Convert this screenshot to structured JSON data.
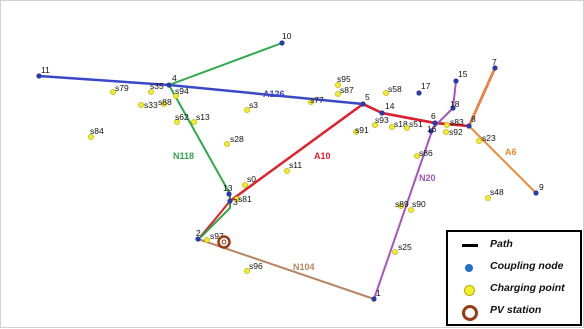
{
  "colors": {
    "A126": "#3a48c8",
    "A10": "#e0202a",
    "N118": "#2fa84a",
    "N20": "#a555c0",
    "A6": "#f08a30",
    "N104": "#b98560",
    "coupling": "#2a3aa8",
    "charging": "#f2ec2a"
  },
  "edges": {
    "A126": "A126",
    "A10": "A10",
    "N118": "N118",
    "N20": "N20",
    "A6": "A6",
    "N104": "N104"
  },
  "coupling_nodes": [
    "1",
    "2",
    "3",
    "4",
    "5",
    "6",
    "7",
    "8",
    "9",
    "10",
    "11",
    "13",
    "14",
    "15",
    "16",
    "17",
    "18"
  ],
  "charging_points": [
    "s0",
    "s11",
    "s13",
    "s18",
    "s23",
    "s25",
    "s28",
    "s3",
    "s33",
    "s35",
    "s48",
    "s51",
    "s58",
    "s62",
    "s77",
    "s79",
    "s81",
    "s83",
    "s84",
    "s86",
    "s87",
    "s88",
    "s89",
    "s90",
    "s91",
    "s92",
    "s93",
    "s94",
    "s95",
    "s96",
    "s97"
  ],
  "legend": {
    "path": "Path",
    "coupling": "Coupling node",
    "charging": "Charging point",
    "pv": "PV station"
  }
}
